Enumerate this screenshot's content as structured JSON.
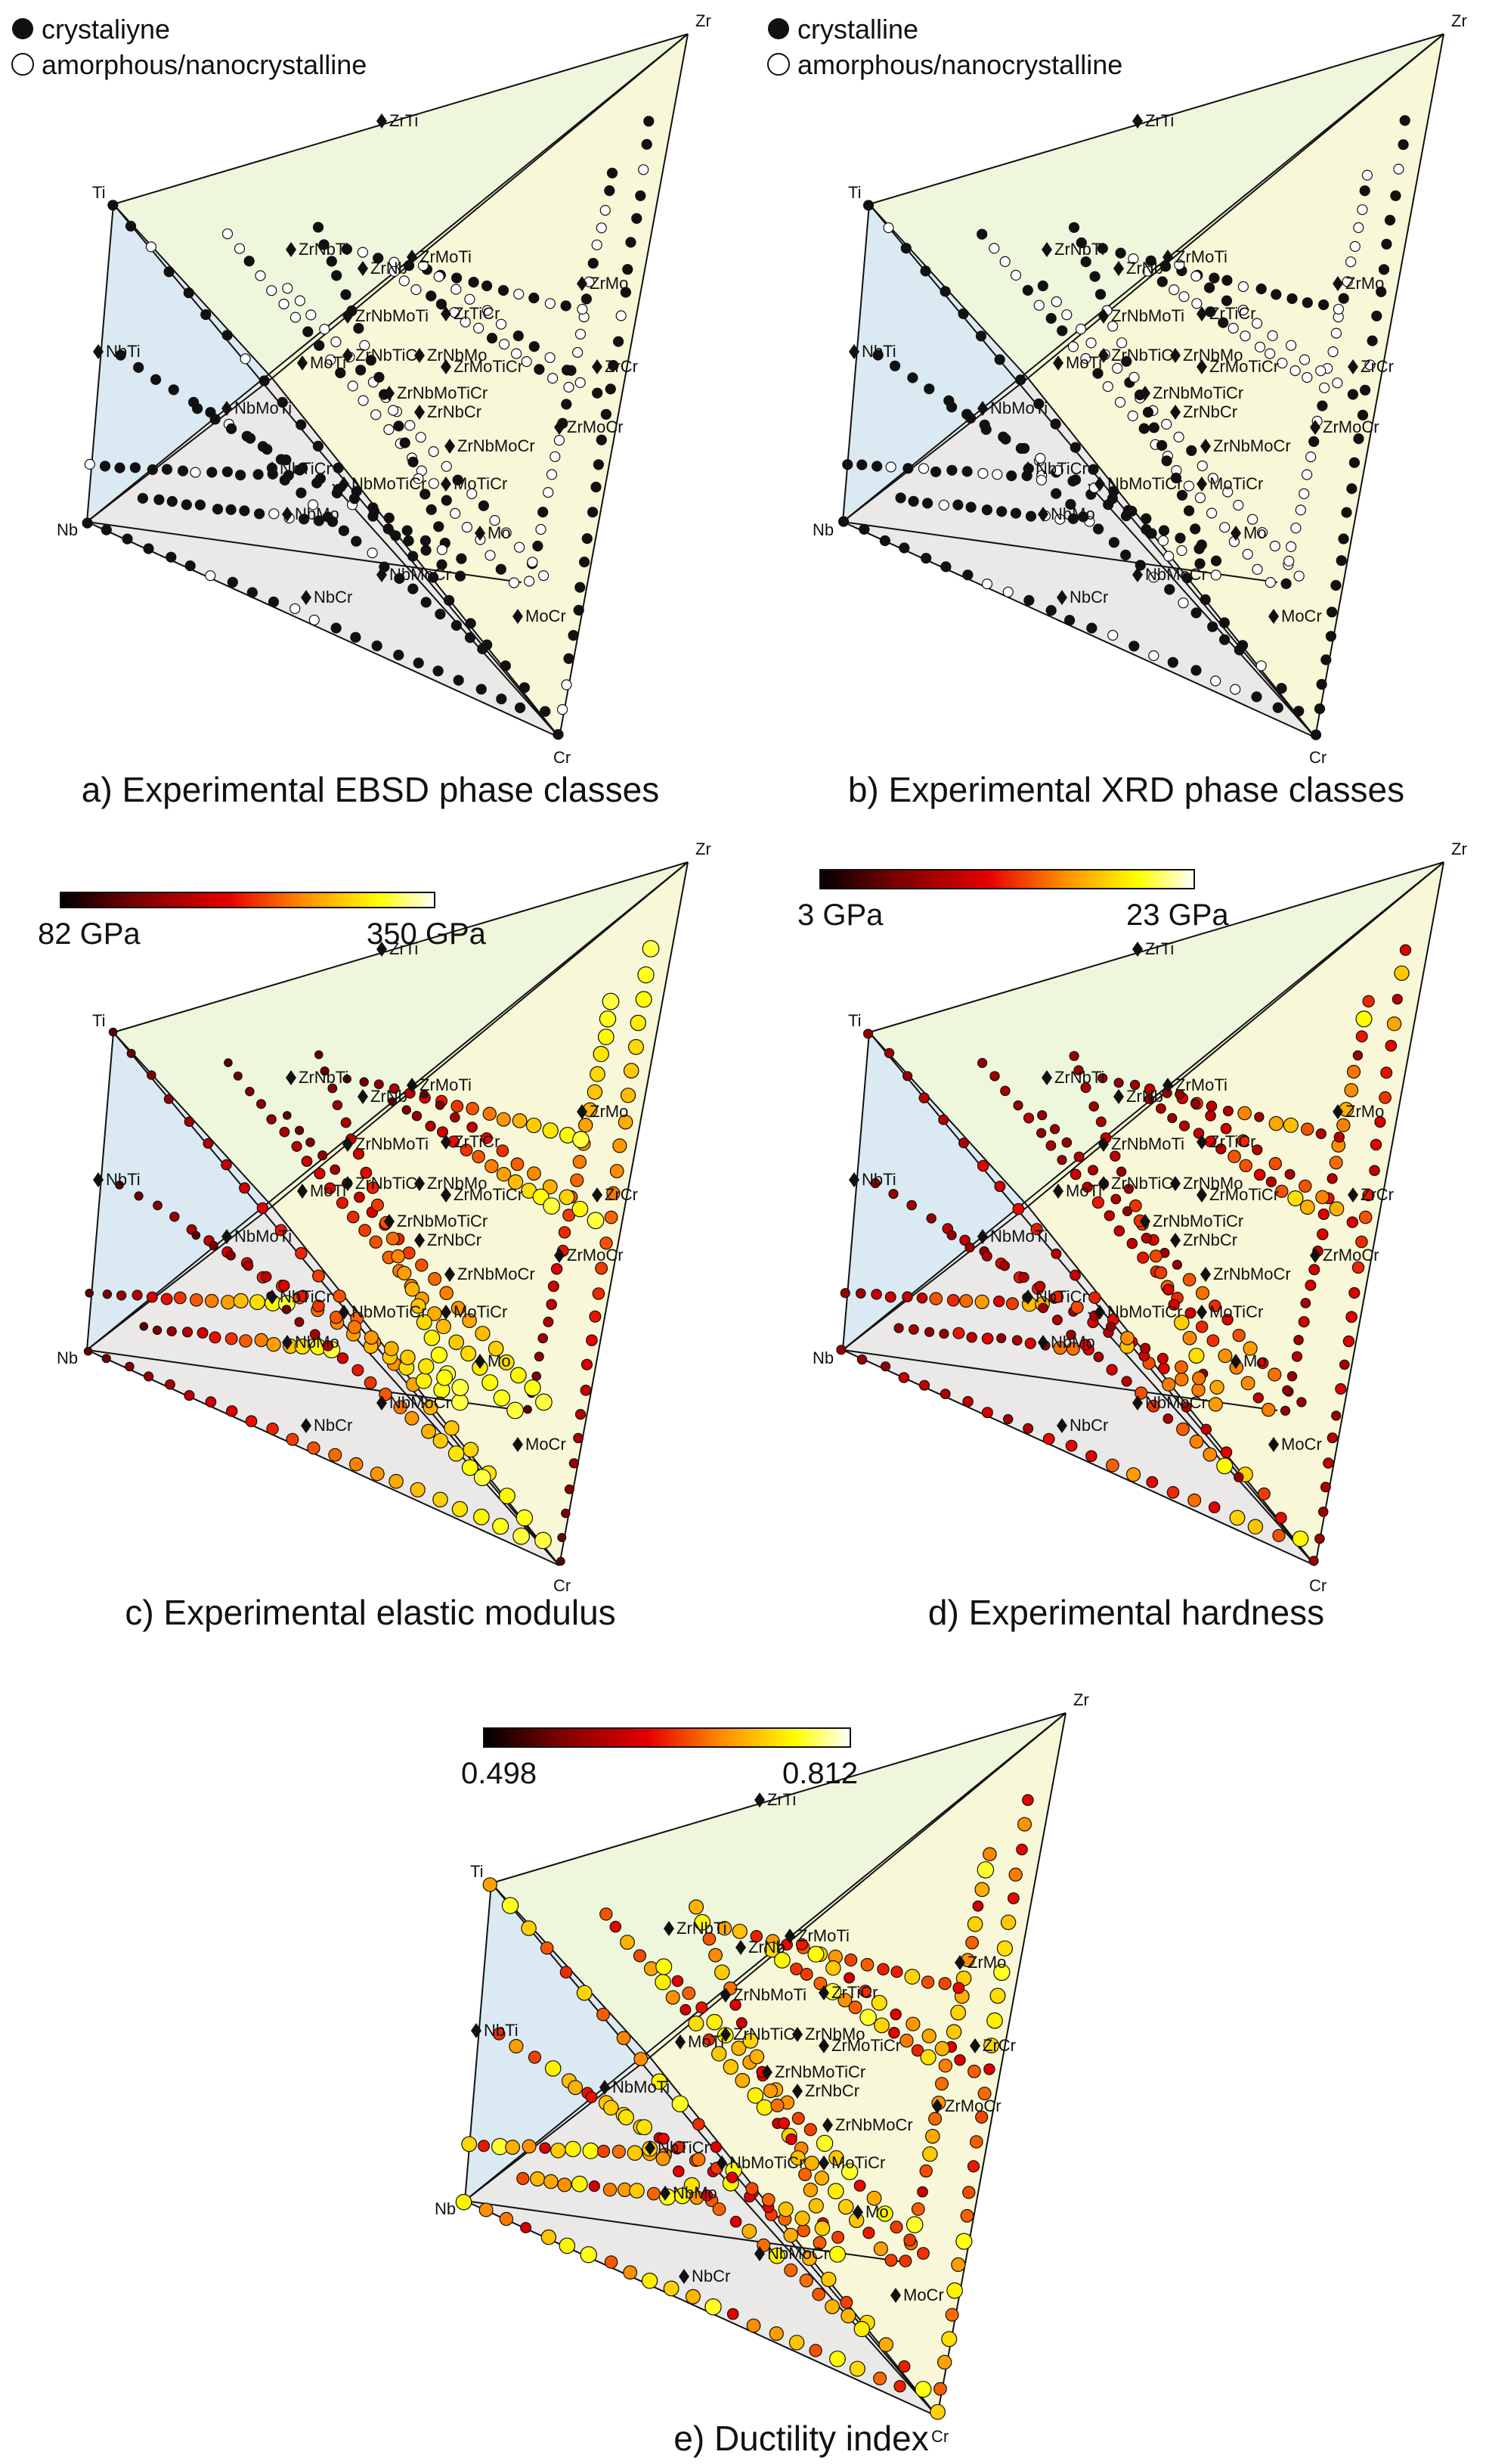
{
  "colors": {
    "face_blue": "#dbeaf2",
    "face_green": "#eef6dc",
    "face_purple": "#e4e0f2",
    "face_yellow": "#f8f7d8",
    "marker": "#111111",
    "heat": [
      "#000000",
      "#7a0000",
      "#e60000",
      "#ff8c00",
      "#ffff00",
      "#ffffff"
    ]
  },
  "vertices": [
    "Zr",
    "Ti",
    "Nb",
    "Cr"
  ],
  "marker_labels": [
    "ZrTi",
    "ZrNbTi",
    "ZrNb",
    "ZrMoTi",
    "ZrMo",
    "NbTi",
    "ZrNbMoTi",
    "ZrTiCr",
    "ZrNbTiCr",
    "ZrNbMo",
    "ZrMoTiCr",
    "ZrCr",
    "NbMoTi",
    "ZrNbMoTiCr",
    "ZrNbCr",
    "ZrMoCr",
    "ZrNbMoCr",
    "NbTiCr",
    "NbMoTiCr",
    "NbMo",
    "MoTi",
    "MoTiCr",
    "NbMoCr",
    "NbCr",
    "MoCr",
    "Mo",
    "NbCr_alt"
  ],
  "panels": [
    {
      "id": "a",
      "caption": "a) Experimental EBSD phase classes",
      "type": "phase",
      "legend": {
        "filled": "crystaliyne",
        "open": "amorphous/nanocrystalline"
      }
    },
    {
      "id": "b",
      "caption": "b) Experimental XRD phase classes",
      "type": "phase",
      "legend": {
        "filled": "crystalline",
        "open": "amorphous/nanocrystalline"
      }
    },
    {
      "id": "c",
      "caption": "c) Experimental elastic modulus",
      "type": "heat",
      "colorbar": {
        "min_label": "82 GPa",
        "max_label": "350 GPa",
        "min": 82,
        "max": 350
      }
    },
    {
      "id": "d",
      "caption": "d) Experimental hardness",
      "type": "heat",
      "colorbar": {
        "min_label": "3 GPa",
        "max_label": "23 GPa",
        "min": 3,
        "max": 23
      }
    },
    {
      "id": "e",
      "caption": "e) Ductility index",
      "type": "heat",
      "colorbar": {
        "min_label": "0.498",
        "max_label": "0.812",
        "min": 0.498,
        "max": 0.812
      }
    }
  ],
  "chart_data": [
    {
      "type": "scatter",
      "title": "a) Experimental EBSD phase classes",
      "legend": [
        "crystaliyne",
        "amorphous/nanocrystalline"
      ],
      "vertices": [
        "Zr",
        "Ti",
        "Nb",
        "Cr"
      ]
    },
    {
      "type": "scatter",
      "title": "b) Experimental XRD phase classes",
      "legend": [
        "crystalline",
        "amorphous/nanocrystalline"
      ],
      "vertices": [
        "Zr",
        "Ti",
        "Nb",
        "Cr"
      ]
    },
    {
      "type": "scatter",
      "title": "c) Experimental elastic modulus",
      "colorbar_range": [
        82,
        350
      ],
      "colorbar_labels": [
        "82 GPa",
        "350 GPa"
      ],
      "vertices": [
        "Zr",
        "Ti",
        "Nb",
        "Cr"
      ]
    },
    {
      "type": "scatter",
      "title": "d) Experimental hardness",
      "colorbar_range": [
        3,
        23
      ],
      "colorbar_labels": [
        "3 GPa",
        "23 GPa"
      ],
      "vertices": [
        "Zr",
        "Ti",
        "Nb",
        "Cr"
      ]
    },
    {
      "type": "scatter",
      "title": "e) Ductility index",
      "colorbar_range": [
        0.498,
        0.812
      ],
      "colorbar_labels": [
        "0.498",
        "0.812"
      ],
      "vertices": [
        "Zr",
        "Ti",
        "Nb",
        "Cr"
      ]
    }
  ]
}
